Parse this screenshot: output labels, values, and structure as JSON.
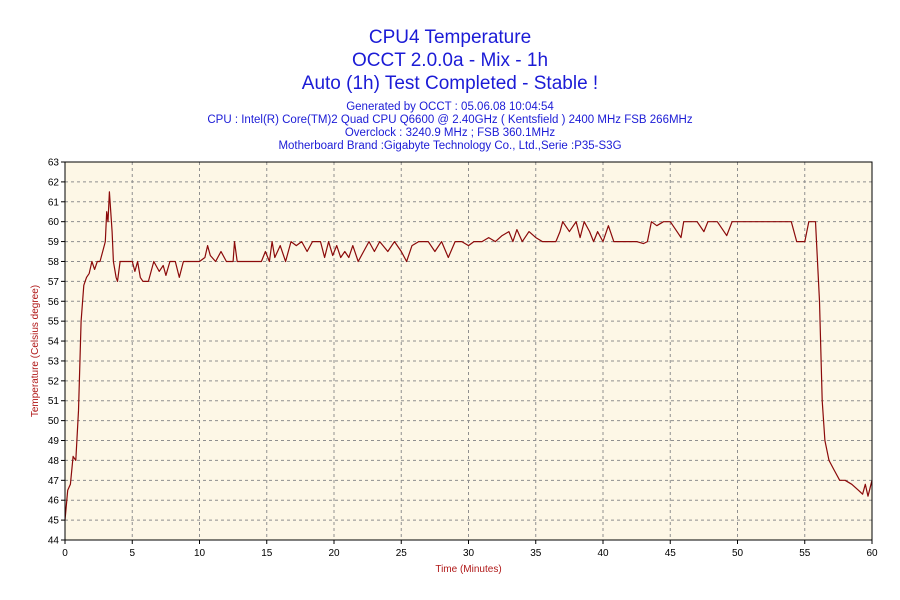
{
  "titles": {
    "line1": "CPU4 Temperature",
    "line2": "OCCT 2.0.0a - Mix - 1h",
    "line3": "Auto (1h) Test Completed - Stable !"
  },
  "info": {
    "generated": "Generated by OCCT : 05.06.08 10:04:54",
    "cpu": "CPU : Intel(R) Core(TM)2 Quad CPU Q6600 @ 2.40GHz ( Kentsfield ) 2400 MHz FSB 266MHz",
    "overclock": "Overclock : 3240.9 MHz ; FSB 360.1MHz",
    "motherboard": "Motherboard Brand :Gigabyte Technology Co., Ltd.,Serie :P35-S3G"
  },
  "colors": {
    "plot_bg": "#fdf7e6",
    "line": "#8b0a0a",
    "grid": "#8f8f8f",
    "title": "#1b1bd6",
    "axis_title": "#b01818"
  },
  "chart_data": {
    "type": "line",
    "xlabel": "Time (Minutes)",
    "ylabel": "Temperature (Celsius degree)",
    "xlim": [
      0,
      60
    ],
    "ylim": [
      44,
      63
    ],
    "x_ticks": [
      0,
      5,
      10,
      15,
      20,
      25,
      30,
      35,
      40,
      45,
      50,
      55,
      60
    ],
    "y_ticks": [
      44,
      45,
      46,
      47,
      48,
      49,
      50,
      51,
      52,
      53,
      54,
      55,
      56,
      57,
      58,
      59,
      60,
      61,
      62,
      63
    ],
    "grid": true,
    "series": [
      {
        "points": [
          [
            0,
            45
          ],
          [
            0.2,
            46.5
          ],
          [
            0.4,
            46.8
          ],
          [
            0.6,
            48.2
          ],
          [
            0.8,
            48
          ],
          [
            1.0,
            50.5
          ],
          [
            1.2,
            55
          ],
          [
            1.4,
            56.8
          ],
          [
            1.6,
            57.2
          ],
          [
            1.8,
            57.4
          ],
          [
            2.0,
            58
          ],
          [
            2.2,
            57.6
          ],
          [
            2.4,
            58
          ],
          [
            2.6,
            58
          ],
          [
            2.8,
            58.5
          ],
          [
            3.0,
            59
          ],
          [
            3.1,
            60.5
          ],
          [
            3.2,
            60
          ],
          [
            3.3,
            61.5
          ],
          [
            3.5,
            59.5
          ],
          [
            3.6,
            58
          ],
          [
            3.8,
            57.2
          ],
          [
            3.9,
            57
          ],
          [
            4.0,
            57.5
          ],
          [
            4.1,
            58
          ],
          [
            4.5,
            58
          ],
          [
            5.0,
            58
          ],
          [
            5.2,
            57.5
          ],
          [
            5.4,
            58
          ],
          [
            5.6,
            57.2
          ],
          [
            5.8,
            57
          ],
          [
            6.2,
            57
          ],
          [
            6.4,
            57.5
          ],
          [
            6.6,
            58
          ],
          [
            7.0,
            57.5
          ],
          [
            7.3,
            57.8
          ],
          [
            7.5,
            57.3
          ],
          [
            7.8,
            58
          ],
          [
            8.2,
            58
          ],
          [
            8.5,
            57.2
          ],
          [
            8.8,
            58
          ],
          [
            9.5,
            58
          ],
          [
            10.0,
            58
          ],
          [
            10.4,
            58.2
          ],
          [
            10.6,
            58.8
          ],
          [
            10.8,
            58.3
          ],
          [
            11.2,
            58
          ],
          [
            11.6,
            58.5
          ],
          [
            12.0,
            58
          ],
          [
            12.5,
            58
          ],
          [
            12.6,
            59
          ],
          [
            12.8,
            58
          ],
          [
            13.5,
            58
          ],
          [
            14.0,
            58
          ],
          [
            14.6,
            58
          ],
          [
            14.9,
            58.5
          ],
          [
            15.2,
            58
          ],
          [
            15.4,
            59
          ],
          [
            15.6,
            58.2
          ],
          [
            16.0,
            58.8
          ],
          [
            16.4,
            58
          ],
          [
            16.8,
            59
          ],
          [
            17.2,
            58.8
          ],
          [
            17.6,
            59
          ],
          [
            18.0,
            58.5
          ],
          [
            18.4,
            59
          ],
          [
            19.0,
            59
          ],
          [
            19.3,
            58.2
          ],
          [
            19.6,
            59
          ],
          [
            19.9,
            58.3
          ],
          [
            20.2,
            58.8
          ],
          [
            20.5,
            58.2
          ],
          [
            20.8,
            58.5
          ],
          [
            21.1,
            58.2
          ],
          [
            21.4,
            58.8
          ],
          [
            21.8,
            58
          ],
          [
            22.2,
            58.5
          ],
          [
            22.6,
            59
          ],
          [
            23.0,
            58.5
          ],
          [
            23.4,
            59
          ],
          [
            24.0,
            58.5
          ],
          [
            24.5,
            59
          ],
          [
            25.0,
            58.5
          ],
          [
            25.4,
            58
          ],
          [
            25.8,
            58.8
          ],
          [
            26.3,
            59
          ],
          [
            27.0,
            59
          ],
          [
            27.5,
            58.5
          ],
          [
            28.0,
            59
          ],
          [
            28.5,
            58.2
          ],
          [
            29.0,
            59
          ],
          [
            29.5,
            59
          ],
          [
            30.0,
            58.8
          ],
          [
            30.4,
            59
          ],
          [
            31.0,
            59
          ],
          [
            31.5,
            59.2
          ],
          [
            32.0,
            59
          ],
          [
            32.5,
            59.3
          ],
          [
            33.0,
            59.5
          ],
          [
            33.3,
            59
          ],
          [
            33.6,
            59.6
          ],
          [
            34.0,
            59
          ],
          [
            34.5,
            59.5
          ],
          [
            35.0,
            59.2
          ],
          [
            35.5,
            59
          ],
          [
            36.5,
            59
          ],
          [
            36.8,
            59.5
          ],
          [
            37.0,
            60
          ],
          [
            37.5,
            59.5
          ],
          [
            38.0,
            60
          ],
          [
            38.3,
            59.2
          ],
          [
            38.6,
            60
          ],
          [
            39.0,
            59.5
          ],
          [
            39.3,
            59
          ],
          [
            39.6,
            59.5
          ],
          [
            40.0,
            59
          ],
          [
            40.4,
            59.8
          ],
          [
            40.8,
            59
          ],
          [
            41.5,
            59
          ],
          [
            42.5,
            59
          ],
          [
            43.0,
            58.9
          ],
          [
            43.3,
            59
          ],
          [
            43.6,
            60
          ],
          [
            44.0,
            59.8
          ],
          [
            44.5,
            60
          ],
          [
            45.0,
            60
          ],
          [
            45.5,
            59.5
          ],
          [
            45.8,
            59.2
          ],
          [
            46.0,
            60
          ],
          [
            46.5,
            60
          ],
          [
            47.0,
            60
          ],
          [
            47.5,
            59.5
          ],
          [
            47.8,
            60
          ],
          [
            48.5,
            60
          ],
          [
            49.2,
            59.3
          ],
          [
            49.6,
            60
          ],
          [
            50.5,
            60
          ],
          [
            51.5,
            60
          ],
          [
            52.5,
            60
          ],
          [
            53.5,
            60
          ],
          [
            54.0,
            60
          ],
          [
            54.4,
            59
          ],
          [
            55.0,
            59
          ],
          [
            55.3,
            60
          ],
          [
            55.8,
            60
          ],
          [
            56.1,
            56
          ],
          [
            56.3,
            51
          ],
          [
            56.5,
            49
          ],
          [
            56.8,
            48
          ],
          [
            57.2,
            47.5
          ],
          [
            57.6,
            47
          ],
          [
            58.0,
            47
          ],
          [
            58.5,
            46.8
          ],
          [
            59.0,
            46.5
          ],
          [
            59.3,
            46.3
          ],
          [
            59.5,
            46.8
          ],
          [
            59.7,
            46.2
          ],
          [
            60.0,
            47
          ]
        ]
      }
    ]
  }
}
